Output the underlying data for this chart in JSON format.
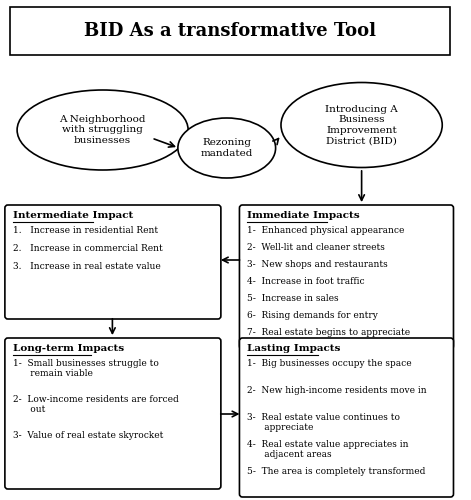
{
  "title": "BID As a transformative Tool",
  "title_fontsize": 13,
  "bg_color": "#ffffff",
  "ellipse1_text": "A Neighborhood\nwith struggling\nbusinesses",
  "ellipse2_text": "Rezoning\nmandated",
  "ellipse3_text": "Introducing A\nBusiness\nImprovement\nDistrict (BID)",
  "box_immediate_title": "Immediate Impacts",
  "box_immediate_items": [
    "1-  Enhanced physical appearance",
    "2-  Well-lit and cleaner streets",
    "3-  New shops and restaurants",
    "4-  Increase in foot traffic",
    "5-  Increase in sales",
    "6-  Rising demands for entry",
    "7-  Real estate begins to appreciate"
  ],
  "box_intermediate_title": "Intermediate Impact",
  "box_intermediate_items": [
    "1.   Increase in residential Rent",
    "2.   Increase in commercial Rent",
    "3.   Increase in real estate value"
  ],
  "box_longterm_title": "Long-term Impacts",
  "box_longterm_items": [
    "1-  Small businesses struggle to\n      remain viable",
    "2-  Low-income residents are forced\n      out",
    "3-  Value of real estate skyrocket"
  ],
  "box_lasting_title": "Lasting Impacts",
  "box_lasting_items": [
    "1-  Big businesses occupy the space",
    "2-  New high-income residents move in",
    "3-  Real estate value continues to\n      appreciate",
    "4-  Real estate value appreciates in\n      adjacent areas",
    "5-  The area is completely transformed"
  ]
}
